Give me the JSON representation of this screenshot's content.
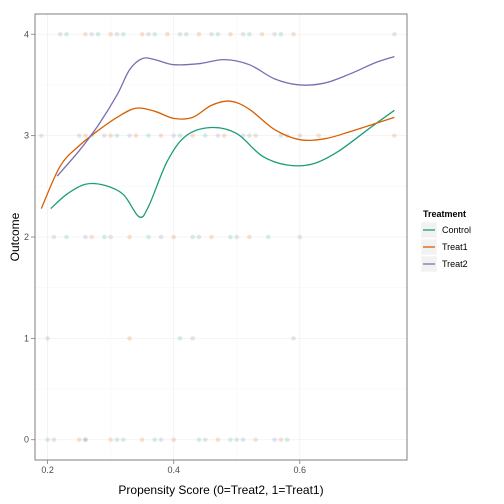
{
  "chart_data": {
    "type": "scatter",
    "xlabel": "Propensity Score (0=Treat2, 1=Treat1)",
    "ylabel": "Outcome",
    "xlim": [
      0.18,
      0.77
    ],
    "ylim": [
      -0.2,
      4.2
    ],
    "x_ticks": [
      0.2,
      0.4,
      0.6
    ],
    "x_tick_labels": [
      "0.2",
      "0.4",
      "0.6"
    ],
    "y_ticks": [
      0,
      1,
      2,
      3,
      4
    ],
    "y_tick_labels": [
      "0",
      "1",
      "2",
      "3",
      "4"
    ],
    "grid": true,
    "legend": {
      "title": "Treatment",
      "placement": "right",
      "entries": [
        "Control",
        "Treat1",
        "Treat2"
      ]
    },
    "series": [
      {
        "name": "Control",
        "color": "#1b9e77",
        "smooth": [
          [
            0.205,
            2.28
          ],
          [
            0.23,
            2.42
          ],
          [
            0.26,
            2.52
          ],
          [
            0.29,
            2.51
          ],
          [
            0.32,
            2.42
          ],
          [
            0.345,
            2.2
          ],
          [
            0.36,
            2.3
          ],
          [
            0.39,
            2.75
          ],
          [
            0.42,
            3.0
          ],
          [
            0.46,
            3.08
          ],
          [
            0.5,
            3.02
          ],
          [
            0.54,
            2.8
          ],
          [
            0.58,
            2.71
          ],
          [
            0.62,
            2.72
          ],
          [
            0.66,
            2.84
          ],
          [
            0.71,
            3.07
          ],
          [
            0.75,
            3.25
          ]
        ],
        "points": [
          [
            0.2,
            0
          ],
          [
            0.26,
            0
          ],
          [
            0.31,
            0
          ],
          [
            0.37,
            0
          ],
          [
            0.44,
            0
          ],
          [
            0.49,
            0
          ],
          [
            0.51,
            0
          ],
          [
            0.58,
            0
          ],
          [
            0.23,
            2
          ],
          [
            0.29,
            2
          ],
          [
            0.36,
            2
          ],
          [
            0.43,
            2
          ],
          [
            0.49,
            2
          ],
          [
            0.55,
            2
          ],
          [
            0.27,
            3
          ],
          [
            0.31,
            3
          ],
          [
            0.36,
            3
          ],
          [
            0.41,
            3
          ],
          [
            0.45,
            3
          ],
          [
            0.52,
            3
          ],
          [
            0.57,
            3
          ],
          [
            0.23,
            4
          ],
          [
            0.28,
            4
          ],
          [
            0.32,
            4
          ],
          [
            0.37,
            4
          ],
          [
            0.42,
            4
          ],
          [
            0.47,
            4
          ],
          [
            0.52,
            4
          ],
          [
            0.57,
            4
          ],
          [
            0.41,
            1
          ]
        ]
      },
      {
        "name": "Treat1",
        "color": "#d95f02",
        "smooth": [
          [
            0.19,
            2.28
          ],
          [
            0.22,
            2.7
          ],
          [
            0.25,
            2.9
          ],
          [
            0.28,
            3.05
          ],
          [
            0.31,
            3.18
          ],
          [
            0.34,
            3.27
          ],
          [
            0.37,
            3.24
          ],
          [
            0.4,
            3.17
          ],
          [
            0.43,
            3.18
          ],
          [
            0.46,
            3.3
          ],
          [
            0.49,
            3.34
          ],
          [
            0.52,
            3.26
          ],
          [
            0.56,
            3.06
          ],
          [
            0.6,
            2.96
          ],
          [
            0.64,
            2.97
          ],
          [
            0.68,
            3.04
          ],
          [
            0.72,
            3.12
          ],
          [
            0.75,
            3.18
          ]
        ],
        "points": [
          [
            0.25,
            0
          ],
          [
            0.3,
            0
          ],
          [
            0.35,
            0
          ],
          [
            0.4,
            0
          ],
          [
            0.47,
            0
          ],
          [
            0.53,
            0
          ],
          [
            0.57,
            0
          ],
          [
            0.27,
            2
          ],
          [
            0.33,
            2
          ],
          [
            0.4,
            2
          ],
          [
            0.46,
            2
          ],
          [
            0.52,
            2
          ],
          [
            0.26,
            3
          ],
          [
            0.3,
            3
          ],
          [
            0.34,
            3
          ],
          [
            0.38,
            3
          ],
          [
            0.43,
            3
          ],
          [
            0.48,
            3
          ],
          [
            0.53,
            3
          ],
          [
            0.58,
            3
          ],
          [
            0.63,
            3
          ],
          [
            0.75,
            3
          ],
          [
            0.26,
            4
          ],
          [
            0.3,
            4
          ],
          [
            0.35,
            4
          ],
          [
            0.39,
            4
          ],
          [
            0.44,
            4
          ],
          [
            0.49,
            4
          ],
          [
            0.54,
            4
          ],
          [
            0.59,
            4
          ],
          [
            0.33,
            1
          ]
        ]
      },
      {
        "name": "Treat2",
        "color": "#7570b3",
        "smooth": [
          [
            0.215,
            2.6
          ],
          [
            0.25,
            2.85
          ],
          [
            0.28,
            3.1
          ],
          [
            0.31,
            3.4
          ],
          [
            0.33,
            3.65
          ],
          [
            0.35,
            3.76
          ],
          [
            0.37,
            3.75
          ],
          [
            0.4,
            3.7
          ],
          [
            0.44,
            3.71
          ],
          [
            0.48,
            3.75
          ],
          [
            0.52,
            3.7
          ],
          [
            0.56,
            3.56
          ],
          [
            0.6,
            3.5
          ],
          [
            0.64,
            3.52
          ],
          [
            0.68,
            3.61
          ],
          [
            0.72,
            3.72
          ],
          [
            0.75,
            3.78
          ]
        ],
        "points": [
          [
            0.21,
            0
          ],
          [
            0.26,
            0
          ],
          [
            0.32,
            0
          ],
          [
            0.38,
            0
          ],
          [
            0.45,
            0
          ],
          [
            0.5,
            0
          ],
          [
            0.56,
            0
          ],
          [
            0.21,
            2
          ],
          [
            0.26,
            2
          ],
          [
            0.3,
            2
          ],
          [
            0.38,
            2
          ],
          [
            0.44,
            2
          ],
          [
            0.5,
            2
          ],
          [
            0.6,
            2
          ],
          [
            0.19,
            3
          ],
          [
            0.25,
            3
          ],
          [
            0.29,
            3
          ],
          [
            0.33,
            3
          ],
          [
            0.4,
            3
          ],
          [
            0.47,
            3
          ],
          [
            0.51,
            3
          ],
          [
            0.6,
            3
          ],
          [
            0.22,
            4
          ],
          [
            0.27,
            4
          ],
          [
            0.31,
            4
          ],
          [
            0.36,
            4
          ],
          [
            0.41,
            4
          ],
          [
            0.46,
            4
          ],
          [
            0.51,
            4
          ],
          [
            0.56,
            4
          ],
          [
            0.75,
            4
          ],
          [
            0.2,
            1
          ],
          [
            0.43,
            1
          ],
          [
            0.59,
            1
          ]
        ]
      }
    ]
  }
}
